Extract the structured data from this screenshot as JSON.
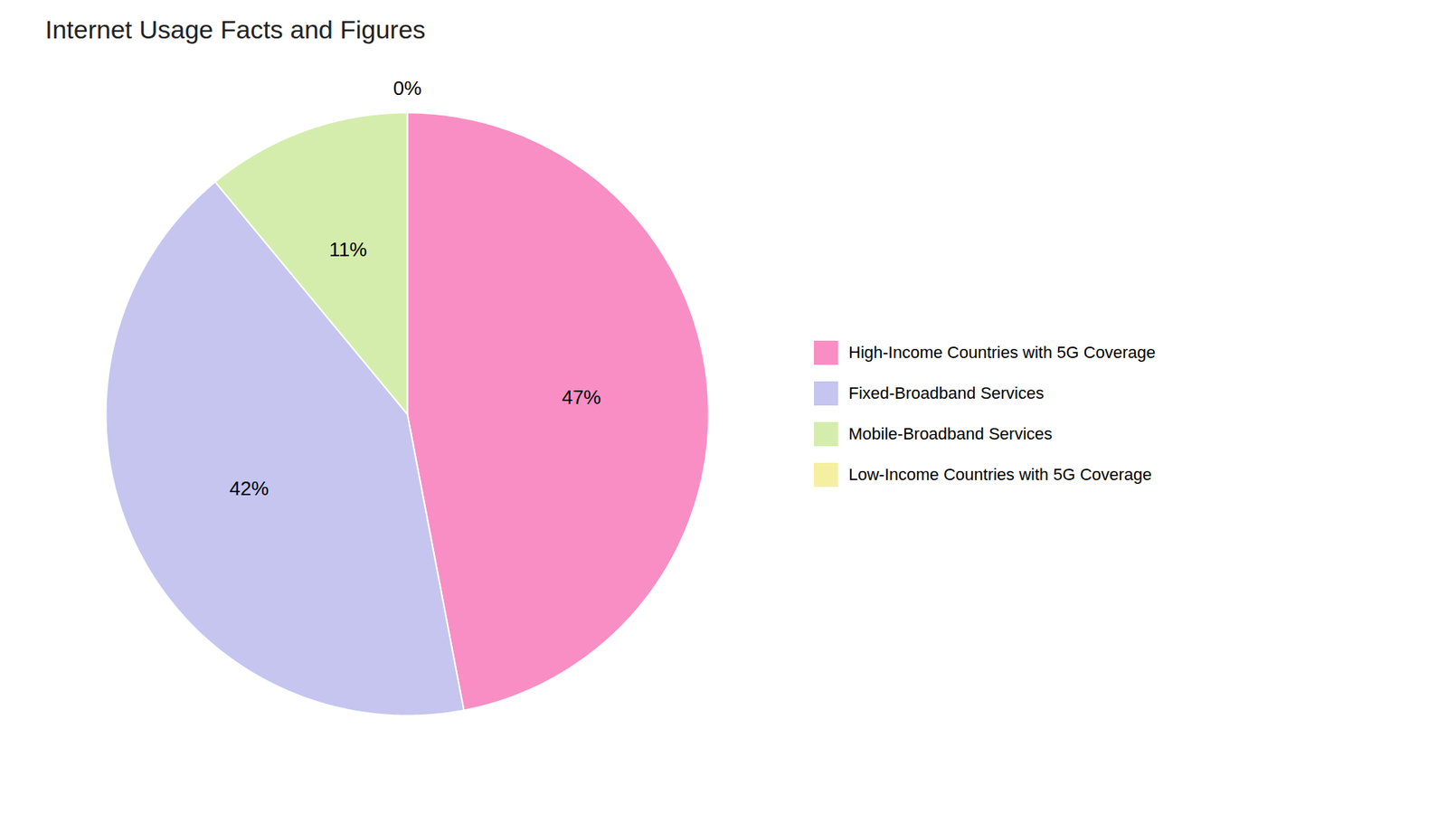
{
  "chart_data": {
    "type": "pie",
    "title": "Internet Usage Facts and Figures",
    "categories": [
      "High-Income Countries with 5G Coverage",
      "Fixed-Broadband Services",
      "Mobile-Broadband Services",
      "Low-Income Countries with 5G Coverage"
    ],
    "values": [
      47,
      42,
      11,
      0
    ],
    "value_labels": [
      "47%",
      "42%",
      "11%",
      "0%"
    ],
    "colors": [
      "#f98ec4",
      "#c5c5f0",
      "#d4edac",
      "#f5f0a0"
    ],
    "data_labels": true,
    "legend": "right"
  }
}
